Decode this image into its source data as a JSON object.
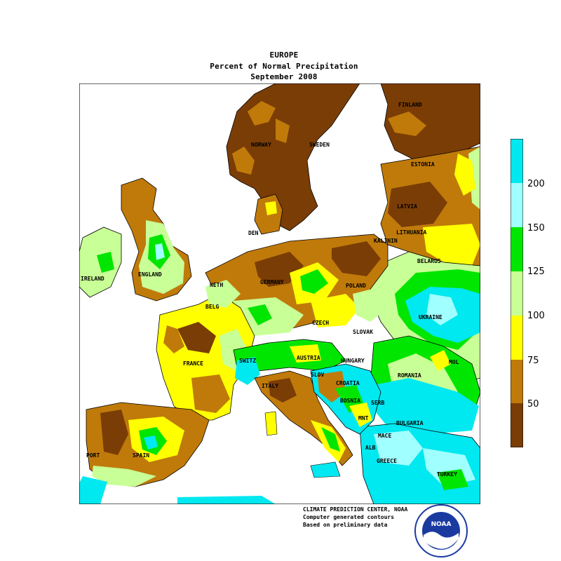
{
  "title": {
    "region": "EUROPE",
    "product": "Percent of Normal Precipitation",
    "period": "September 2008"
  },
  "legend": {
    "type": "colorbar",
    "bins": [
      {
        "color": "#7a3d05",
        "from": null,
        "to": 50
      },
      {
        "color": "#c07a0a",
        "from": 50,
        "to": 75
      },
      {
        "color": "#ffff00",
        "from": 75,
        "to": 100
      },
      {
        "color": "#c8ff96",
        "from": 100,
        "to": 125
      },
      {
        "color": "#00e600",
        "from": 125,
        "to": 150
      },
      {
        "color": "#a0ffff",
        "from": 150,
        "to": 200
      },
      {
        "color": "#00e8f0",
        "from": 200,
        "to": null
      }
    ],
    "tick_labels": [
      "50",
      "75",
      "100",
      "125",
      "150",
      "200"
    ]
  },
  "map_labels": {
    "finland": "FINLAND",
    "norway": "NORWAY",
    "sweden": "SWEDEN",
    "estonia": "ESTONIA",
    "latvia": "LATVIA",
    "lithuania": "LITHUANIA",
    "kaliningrad": "KALININ",
    "belarus": "BELARUS",
    "denmark": "DEN",
    "ireland": "IRELAND",
    "england": "ENGLAND",
    "netherlands": "NETH",
    "belgium": "BELG",
    "germany": "GERMANY",
    "poland": "POLAND",
    "ukraine": "UKRAINE",
    "czech": "CZECH",
    "slovakia": "SLOVAK",
    "austria": "AUSTRIA",
    "hungary": "HUNGARY",
    "switzerland": "SWITZ",
    "france": "FRANCE",
    "italy": "ITALY",
    "slovenia": "SLOV",
    "croatia": "CROATIA",
    "bosnia": "BOSNIA",
    "serbia": "SERB",
    "romania": "ROMANIA",
    "moldova": "MOL",
    "bulgaria": "BULGARIA",
    "montenegro": "MNT",
    "macedonia": "MACE",
    "albania": "ALB",
    "greece": "GREECE",
    "turkey": "TURKEY",
    "portugal": "PORT",
    "spain": "SPAIN"
  },
  "credits": {
    "line1": "CLIMATE PREDICTION CENTER, NOAA",
    "line2": "Computer generated contours",
    "line3": "Based on preliminary data"
  },
  "logo": {
    "text": "NOAA"
  }
}
